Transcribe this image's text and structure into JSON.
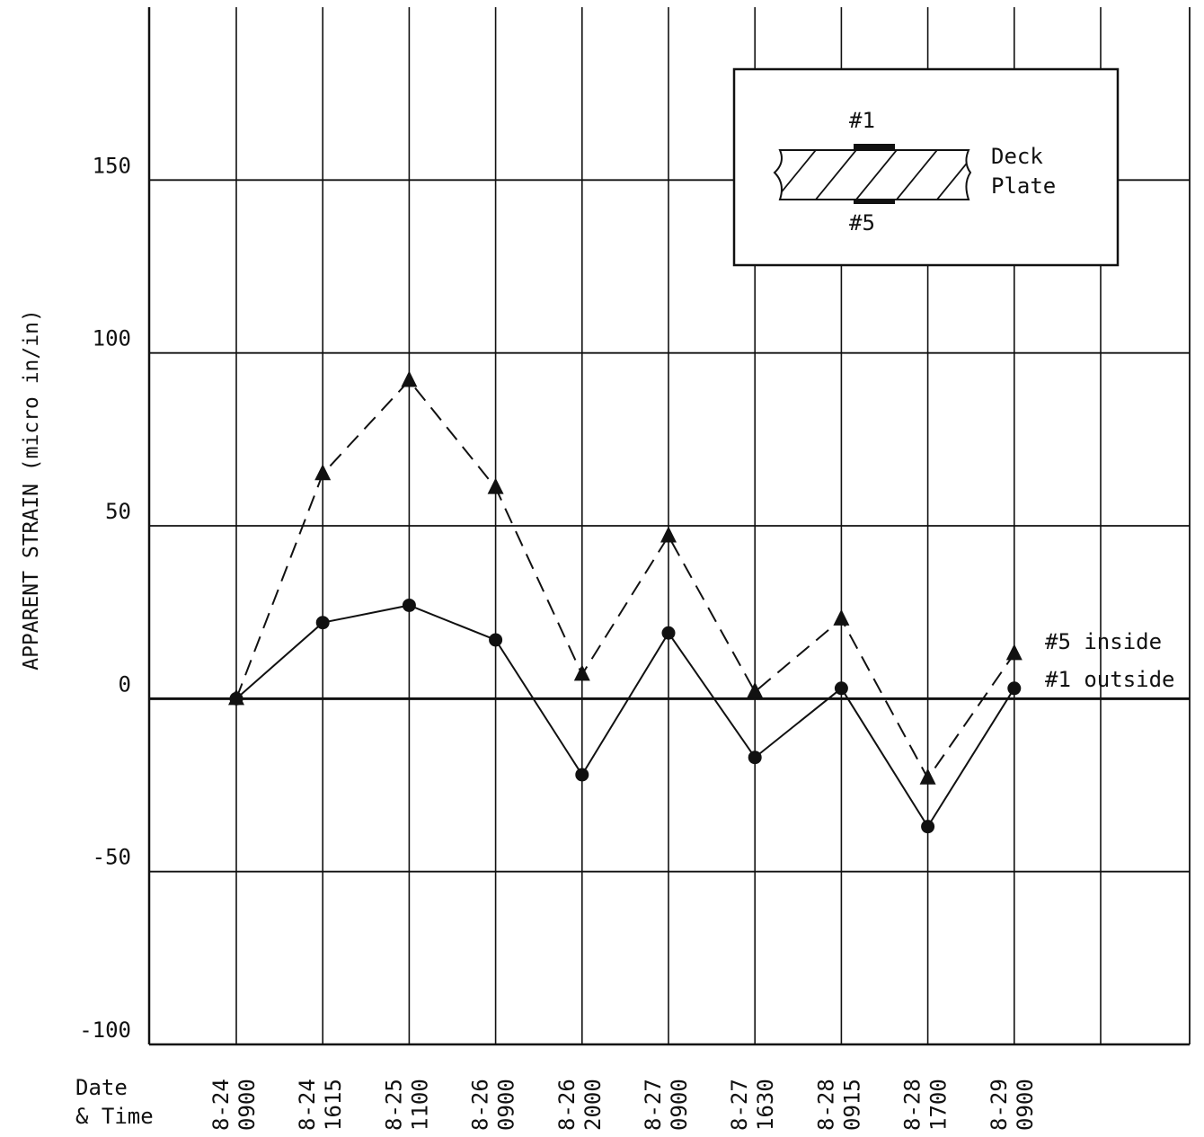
{
  "chart_data": {
    "type": "line",
    "title": "",
    "ylabel": "APPARENT STRAIN (micro in/in)",
    "xlabel_lines": [
      "Date",
      "& Time"
    ],
    "ylim": [
      -100,
      200
    ],
    "yticks": [
      150,
      100,
      50,
      0,
      -50,
      -100
    ],
    "grid": true,
    "categories": [
      [
        "8-24",
        "0900"
      ],
      [
        "8-24",
        "1615"
      ],
      [
        "8-25",
        "1100"
      ],
      [
        "8-26",
        "0900"
      ],
      [
        "8-26",
        "2000"
      ],
      [
        "8-27",
        "0900"
      ],
      [
        "8-27",
        "1630"
      ],
      [
        "8-28",
        "0915"
      ],
      [
        "8-28",
        "1700"
      ],
      [
        "8-29",
        "0900"
      ]
    ],
    "series": [
      {
        "name": "#5 inside",
        "style": "dashed",
        "marker": "triangle",
        "values": [
          0,
          65,
          92,
          61,
          7,
          47,
          2,
          23,
          -23,
          13
        ]
      },
      {
        "name": "#1 outside",
        "style": "solid",
        "marker": "circle",
        "values": [
          0,
          22,
          27,
          17,
          -22,
          19,
          -17,
          3,
          -37,
          3
        ]
      }
    ],
    "inset": {
      "top_label": "#1",
      "bottom_label": "#5",
      "side_label_1": "Deck",
      "side_label_2": "Plate"
    },
    "colors": {
      "ink": "#111111",
      "background": "#ffffff"
    }
  }
}
